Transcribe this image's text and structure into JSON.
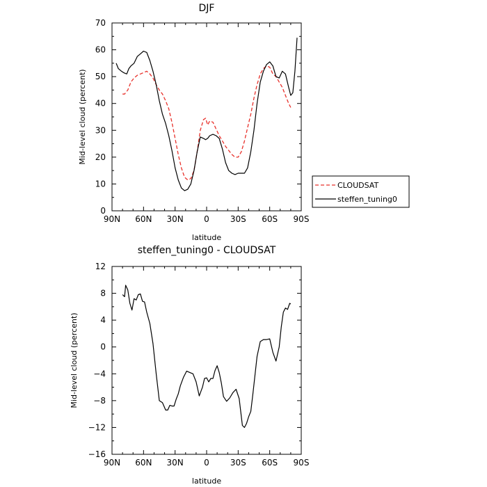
{
  "chart_data": [
    {
      "type": "line",
      "title": "DJF",
      "xlabel": "latitude",
      "ylabel": "Mid-level cloud (percent)",
      "xlim": [
        90,
        -90
      ],
      "ylim": [
        0,
        70
      ],
      "xticks": [
        90,
        60,
        30,
        0,
        -30,
        -60,
        -90
      ],
      "xtick_labels": [
        "90N",
        "60N",
        "30N",
        "0",
        "30S",
        "60S",
        "90S"
      ],
      "yticks": [
        0,
        10,
        20,
        30,
        40,
        50,
        60,
        70
      ],
      "ytick_labels": [
        "0",
        "10",
        "20",
        "30",
        "40",
        "50",
        "60",
        "70"
      ],
      "legend": {
        "placement": "right",
        "entries": [
          "CLOUDSAT",
          "steffen_tuning0"
        ]
      },
      "series": [
        {
          "name": "CLOUDSAT",
          "color": "#e8302a",
          "style": "dashed",
          "x": [
            80,
            78,
            75,
            72,
            69,
            66,
            63,
            60,
            57,
            54,
            51,
            48,
            45,
            42,
            39,
            36,
            33,
            30,
            27,
            24,
            21,
            18,
            15,
            12,
            9,
            6,
            3,
            1,
            -1,
            -3,
            -6,
            -9,
            -12,
            -15,
            -18,
            -21,
            -24,
            -27,
            -30,
            -33,
            -36,
            -39,
            -42,
            -45,
            -48,
            -51,
            -54,
            -57,
            -60,
            -63,
            -66,
            -69,
            -72,
            -75,
            -78,
            -80
          ],
          "y": [
            43.5,
            43.5,
            45,
            48,
            49.5,
            50.5,
            51,
            51.5,
            52,
            51,
            49.5,
            47,
            45,
            43.5,
            41,
            38,
            33,
            27,
            21,
            16,
            12.5,
            11.5,
            12,
            15,
            22,
            30,
            34,
            34.5,
            32,
            33.5,
            33,
            30.5,
            28,
            26,
            24,
            22.5,
            21,
            20,
            20,
            22,
            26,
            31,
            36,
            42,
            47,
            51,
            53,
            54,
            53.5,
            51,
            50,
            48,
            46,
            43,
            40,
            38.5
          ]
        },
        {
          "name": "steffen_tuning0",
          "color": "#000000",
          "style": "solid",
          "x": [
            86,
            84,
            81,
            79,
            76,
            74,
            72,
            69,
            66,
            63,
            60,
            57,
            54,
            51,
            48,
            45,
            42,
            39,
            36,
            33,
            30,
            27,
            24,
            21,
            18,
            15,
            12,
            9,
            6,
            3,
            1,
            -1,
            -3,
            -6,
            -9,
            -12,
            -15,
            -18,
            -21,
            -24,
            -27,
            -30,
            -33,
            -36,
            -39,
            -42,
            -45,
            -48,
            -51,
            -54,
            -57,
            -60,
            -63,
            -66,
            -69,
            -72,
            -75,
            -78,
            -80,
            -82,
            -84,
            -86
          ],
          "y": [
            55,
            53,
            52,
            51.5,
            51,
            53,
            54,
            55,
            57.5,
            58.5,
            59.5,
            59,
            56,
            52,
            47,
            41,
            36,
            32.5,
            28,
            22.5,
            16,
            11.5,
            8.5,
            7.5,
            8,
            10,
            15,
            22,
            27.5,
            27,
            26.5,
            27,
            28,
            28.5,
            28,
            27,
            23,
            18,
            15,
            14,
            13.5,
            14,
            14,
            14,
            16,
            22,
            30,
            40,
            48,
            52,
            54.5,
            55.5,
            54,
            50,
            49.5,
            52,
            51,
            46,
            43,
            44,
            52,
            64.5
          ]
        }
      ]
    },
    {
      "type": "line",
      "title": "steffen_tuning0 - CLOUDSAT",
      "xlabel": "latitude",
      "ylabel": "Mid-level cloud (percent)",
      "xlim": [
        90,
        -90
      ],
      "ylim": [
        -16,
        12
      ],
      "xticks": [
        90,
        60,
        30,
        0,
        -30,
        -60,
        -90
      ],
      "xtick_labels": [
        "90N",
        "60N",
        "30N",
        "0",
        "30S",
        "60S",
        "90S"
      ],
      "yticks": [
        -16,
        -12,
        -8,
        -4,
        0,
        4,
        8,
        12
      ],
      "ytick_labels": [
        "−16",
        "−12",
        "−8",
        "−4",
        "0",
        "4",
        "8",
        "12"
      ],
      "series": [
        {
          "color": "#000000",
          "style": "solid",
          "x": [
            80,
            78,
            77,
            75,
            73,
            71,
            69,
            67,
            65,
            63,
            61,
            59,
            57,
            54,
            51,
            48,
            45,
            42,
            39,
            37,
            35,
            33,
            31,
            29,
            27,
            25,
            22,
            19,
            16,
            13,
            10,
            7,
            4,
            2,
            0,
            -2,
            -4,
            -6,
            -8,
            -10,
            -12,
            -14,
            -16,
            -19,
            -22,
            -25,
            -28,
            -31,
            -34,
            -36,
            -38,
            -40,
            -42,
            -44,
            -46,
            -48,
            -51,
            -54,
            -57,
            -60,
            -63,
            -66,
            -69,
            -71,
            -73,
            -75,
            -77,
            -79,
            -80
          ],
          "y": [
            7.8,
            7.5,
            9.2,
            8.5,
            6.5,
            5.5,
            7.2,
            7,
            7.8,
            7.9,
            6.8,
            6.7,
            5.2,
            3.5,
            0.5,
            -4,
            -8,
            -8.3,
            -9.4,
            -9.4,
            -8.7,
            -8.8,
            -8.8,
            -7.8,
            -7,
            -5.8,
            -4.5,
            -3.6,
            -3.8,
            -4,
            -5.2,
            -7.3,
            -6,
            -4.7,
            -4.6,
            -5.2,
            -4.7,
            -4.7,
            -3.5,
            -2.8,
            -3.8,
            -5.4,
            -7.4,
            -8.1,
            -7.6,
            -6.8,
            -6.3,
            -7.7,
            -11.7,
            -12,
            -11.4,
            -10.4,
            -9.6,
            -7,
            -4.2,
            -1.4,
            0.8,
            1.1,
            1.1,
            1.2,
            -0.8,
            -2.1,
            0,
            3,
            5.2,
            5.8,
            5.6,
            6.5,
            6.4
          ]
        }
      ]
    }
  ]
}
